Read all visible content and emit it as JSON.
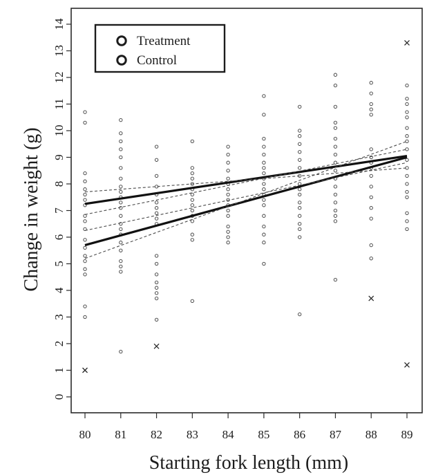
{
  "chart_data": {
    "type": "scatter",
    "xlabel": "Starting fork length (mm)",
    "ylabel": "Change in weight (g)",
    "xlim": [
      80,
      89
    ],
    "ylim": [
      0,
      14
    ],
    "x_ticks": [
      "80",
      "81",
      "82",
      "83",
      "84",
      "85",
      "86",
      "87",
      "88",
      "89"
    ],
    "y_ticks": [
      "0",
      "1",
      "2",
      "3",
      "4",
      "5",
      "6",
      "7",
      "8",
      "9",
      "10",
      "11",
      "12",
      "13",
      "14"
    ],
    "grid": false,
    "legend": {
      "position": "top-left",
      "entries": [
        {
          "marker": "O",
          "label": "Treatment"
        },
        {
          "marker": "O",
          "label": "Control"
        }
      ]
    },
    "points": [
      {
        "x": 80,
        "y": 10.7
      },
      {
        "x": 80,
        "y": 10.3
      },
      {
        "x": 80,
        "y": 8.4
      },
      {
        "x": 80,
        "y": 8.1
      },
      {
        "x": 80,
        "y": 7.8
      },
      {
        "x": 80,
        "y": 7.6
      },
      {
        "x": 80,
        "y": 7.4
      },
      {
        "x": 80,
        "y": 7.2
      },
      {
        "x": 80,
        "y": 6.8
      },
      {
        "x": 80,
        "y": 6.6
      },
      {
        "x": 80,
        "y": 6.3
      },
      {
        "x": 80,
        "y": 5.9
      },
      {
        "x": 80,
        "y": 5.6
      },
      {
        "x": 80,
        "y": 5.3
      },
      {
        "x": 80,
        "y": 5.1
      },
      {
        "x": 80,
        "y": 4.8
      },
      {
        "x": 80,
        "y": 4.6
      },
      {
        "x": 80,
        "y": 3.4
      },
      {
        "x": 80,
        "y": 3.0
      },
      {
        "x": 81,
        "y": 10.4
      },
      {
        "x": 81,
        "y": 9.9
      },
      {
        "x": 81,
        "y": 9.6
      },
      {
        "x": 81,
        "y": 9.3
      },
      {
        "x": 81,
        "y": 9.0
      },
      {
        "x": 81,
        "y": 8.6
      },
      {
        "x": 81,
        "y": 8.2
      },
      {
        "x": 81,
        "y": 7.9
      },
      {
        "x": 81,
        "y": 7.7
      },
      {
        "x": 81,
        "y": 7.5
      },
      {
        "x": 81,
        "y": 7.3
      },
      {
        "x": 81,
        "y": 7.1
      },
      {
        "x": 81,
        "y": 6.8
      },
      {
        "x": 81,
        "y": 6.5
      },
      {
        "x": 81,
        "y": 6.3
      },
      {
        "x": 81,
        "y": 6.1
      },
      {
        "x": 81,
        "y": 5.8
      },
      {
        "x": 81,
        "y": 5.5
      },
      {
        "x": 81,
        "y": 5.1
      },
      {
        "x": 81,
        "y": 4.9
      },
      {
        "x": 81,
        "y": 4.7
      },
      {
        "x": 81,
        "y": 1.7
      },
      {
        "x": 82,
        "y": 9.4
      },
      {
        "x": 82,
        "y": 8.9
      },
      {
        "x": 82,
        "y": 8.3
      },
      {
        "x": 82,
        "y": 7.9
      },
      {
        "x": 82,
        "y": 7.6
      },
      {
        "x": 82,
        "y": 7.3
      },
      {
        "x": 82,
        "y": 7.1
      },
      {
        "x": 82,
        "y": 6.9
      },
      {
        "x": 82,
        "y": 6.7
      },
      {
        "x": 82,
        "y": 6.5
      },
      {
        "x": 82,
        "y": 5.3
      },
      {
        "x": 82,
        "y": 5.0
      },
      {
        "x": 82,
        "y": 4.6
      },
      {
        "x": 82,
        "y": 4.3
      },
      {
        "x": 82,
        "y": 4.1
      },
      {
        "x": 82,
        "y": 3.9
      },
      {
        "x": 82,
        "y": 3.7
      },
      {
        "x": 82,
        "y": 2.9
      },
      {
        "x": 83,
        "y": 9.6
      },
      {
        "x": 83,
        "y": 8.6
      },
      {
        "x": 83,
        "y": 8.4
      },
      {
        "x": 83,
        "y": 8.2
      },
      {
        "x": 83,
        "y": 8.0
      },
      {
        "x": 83,
        "y": 7.8
      },
      {
        "x": 83,
        "y": 7.6
      },
      {
        "x": 83,
        "y": 7.4
      },
      {
        "x": 83,
        "y": 7.2
      },
      {
        "x": 83,
        "y": 7.0
      },
      {
        "x": 83,
        "y": 6.8
      },
      {
        "x": 83,
        "y": 6.6
      },
      {
        "x": 83,
        "y": 6.1
      },
      {
        "x": 83,
        "y": 5.9
      },
      {
        "x": 83,
        "y": 3.6
      },
      {
        "x": 84,
        "y": 9.4
      },
      {
        "x": 84,
        "y": 9.1
      },
      {
        "x": 84,
        "y": 8.8
      },
      {
        "x": 84,
        "y": 8.5
      },
      {
        "x": 84,
        "y": 8.2
      },
      {
        "x": 84,
        "y": 8.0
      },
      {
        "x": 84,
        "y": 7.8
      },
      {
        "x": 84,
        "y": 7.6
      },
      {
        "x": 84,
        "y": 7.4
      },
      {
        "x": 84,
        "y": 7.2
      },
      {
        "x": 84,
        "y": 7.0
      },
      {
        "x": 84,
        "y": 6.8
      },
      {
        "x": 84,
        "y": 6.4
      },
      {
        "x": 84,
        "y": 6.2
      },
      {
        "x": 84,
        "y": 6.0
      },
      {
        "x": 84,
        "y": 5.8
      },
      {
        "x": 85,
        "y": 11.3
      },
      {
        "x": 85,
        "y": 10.6
      },
      {
        "x": 85,
        "y": 9.7
      },
      {
        "x": 85,
        "y": 9.4
      },
      {
        "x": 85,
        "y": 9.1
      },
      {
        "x": 85,
        "y": 8.8
      },
      {
        "x": 85,
        "y": 8.6
      },
      {
        "x": 85,
        "y": 8.4
      },
      {
        "x": 85,
        "y": 8.2
      },
      {
        "x": 85,
        "y": 8.0
      },
      {
        "x": 85,
        "y": 7.8
      },
      {
        "x": 85,
        "y": 7.6
      },
      {
        "x": 85,
        "y": 7.4
      },
      {
        "x": 85,
        "y": 7.2
      },
      {
        "x": 85,
        "y": 6.8
      },
      {
        "x": 85,
        "y": 6.4
      },
      {
        "x": 85,
        "y": 6.1
      },
      {
        "x": 85,
        "y": 5.8
      },
      {
        "x": 85,
        "y": 5.0
      },
      {
        "x": 86,
        "y": 10.9
      },
      {
        "x": 86,
        "y": 10.0
      },
      {
        "x": 86,
        "y": 9.8
      },
      {
        "x": 86,
        "y": 9.5
      },
      {
        "x": 86,
        "y": 9.2
      },
      {
        "x": 86,
        "y": 8.9
      },
      {
        "x": 86,
        "y": 8.6
      },
      {
        "x": 86,
        "y": 8.3
      },
      {
        "x": 86,
        "y": 8.0
      },
      {
        "x": 86,
        "y": 7.8
      },
      {
        "x": 86,
        "y": 7.6
      },
      {
        "x": 86,
        "y": 7.3
      },
      {
        "x": 86,
        "y": 7.1
      },
      {
        "x": 86,
        "y": 6.8
      },
      {
        "x": 86,
        "y": 6.5
      },
      {
        "x": 86,
        "y": 6.3
      },
      {
        "x": 86,
        "y": 6.0
      },
      {
        "x": 86,
        "y": 3.1
      },
      {
        "x": 87,
        "y": 12.1
      },
      {
        "x": 87,
        "y": 11.7
      },
      {
        "x": 87,
        "y": 10.9
      },
      {
        "x": 87,
        "y": 10.3
      },
      {
        "x": 87,
        "y": 10.1
      },
      {
        "x": 87,
        "y": 9.7
      },
      {
        "x": 87,
        "y": 9.4
      },
      {
        "x": 87,
        "y": 9.1
      },
      {
        "x": 87,
        "y": 8.8
      },
      {
        "x": 87,
        "y": 8.5
      },
      {
        "x": 87,
        "y": 8.2
      },
      {
        "x": 87,
        "y": 7.9
      },
      {
        "x": 87,
        "y": 7.6
      },
      {
        "x": 87,
        "y": 7.3
      },
      {
        "x": 87,
        "y": 7.0
      },
      {
        "x": 87,
        "y": 6.8
      },
      {
        "x": 87,
        "y": 6.6
      },
      {
        "x": 87,
        "y": 4.4
      },
      {
        "x": 88,
        "y": 11.8
      },
      {
        "x": 88,
        "y": 11.4
      },
      {
        "x": 88,
        "y": 11.0
      },
      {
        "x": 88,
        "y": 10.8
      },
      {
        "x": 88,
        "y": 10.6
      },
      {
        "x": 88,
        "y": 9.3
      },
      {
        "x": 88,
        "y": 9.0
      },
      {
        "x": 88,
        "y": 8.8
      },
      {
        "x": 88,
        "y": 8.6
      },
      {
        "x": 88,
        "y": 8.3
      },
      {
        "x": 88,
        "y": 7.9
      },
      {
        "x": 88,
        "y": 7.5
      },
      {
        "x": 88,
        "y": 7.1
      },
      {
        "x": 88,
        "y": 6.7
      },
      {
        "x": 88,
        "y": 5.7
      },
      {
        "x": 88,
        "y": 5.2
      },
      {
        "x": 89,
        "y": 11.7
      },
      {
        "x": 89,
        "y": 11.2
      },
      {
        "x": 89,
        "y": 11.0
      },
      {
        "x": 89,
        "y": 10.7
      },
      {
        "x": 89,
        "y": 10.5
      },
      {
        "x": 89,
        "y": 10.1
      },
      {
        "x": 89,
        "y": 9.8
      },
      {
        "x": 89,
        "y": 9.6
      },
      {
        "x": 89,
        "y": 9.3
      },
      {
        "x": 89,
        "y": 8.9
      },
      {
        "x": 89,
        "y": 8.6
      },
      {
        "x": 89,
        "y": 8.3
      },
      {
        "x": 89,
        "y": 8.0
      },
      {
        "x": 89,
        "y": 7.7
      },
      {
        "x": 89,
        "y": 7.5
      },
      {
        "x": 89,
        "y": 6.9
      },
      {
        "x": 89,
        "y": 6.6
      },
      {
        "x": 89,
        "y": 6.3
      }
    ],
    "outliers": [
      {
        "x": 80,
        "y": 1.0
      },
      {
        "x": 82,
        "y": 1.9
      },
      {
        "x": 88,
        "y": 3.7
      },
      {
        "x": 89,
        "y": 13.3
      },
      {
        "x": 89,
        "y": 1.2
      }
    ],
    "fit_lines": [
      {
        "style": "solid",
        "x": [
          80,
          89
        ],
        "y": [
          7.25,
          9.05
        ]
      },
      {
        "style": "solid",
        "x": [
          80,
          89
        ],
        "y": [
          5.7,
          9.0
        ]
      },
      {
        "style": "dashed",
        "x": [
          80,
          89
        ],
        "y": [
          7.7,
          8.6
        ]
      },
      {
        "style": "dashed",
        "x": [
          80,
          89
        ],
        "y": [
          6.85,
          9.3
        ]
      },
      {
        "style": "dashed",
        "x": [
          80,
          89
        ],
        "y": [
          6.25,
          8.8
        ]
      },
      {
        "style": "dashed",
        "x": [
          80,
          89
        ],
        "y": [
          5.2,
          9.6
        ]
      }
    ]
  }
}
